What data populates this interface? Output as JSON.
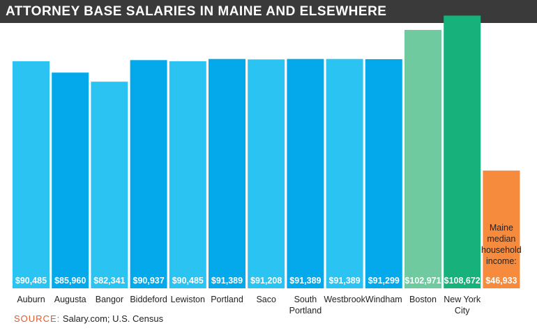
{
  "title": "ATTORNEY BASE SALARIES IN MAINE AND ELSEWHERE",
  "source": {
    "label": "SOURCE:",
    "text": "Salary.com; U.S. Census"
  },
  "colors": {
    "title_bg": "#3a3a3a",
    "bars": [
      "#2bc4f2",
      "#04a9ec",
      "#2bc4f2",
      "#04a9ec",
      "#2bc4f2",
      "#04a9ec",
      "#2bc4f2",
      "#04a9ec",
      "#2bc4f2",
      "#04a9ec",
      "#6fcb9f",
      "#17b27c",
      "#f68a3d"
    ]
  },
  "chart_data": {
    "type": "bar",
    "categories": [
      "Auburn",
      "Augusta",
      "Bangor",
      "Biddeford",
      "Lewiston",
      "Portland",
      "Saco",
      "South Portland",
      "Westbrook",
      "Windham",
      "Boston",
      "New York City",
      ""
    ],
    "values": [
      90485,
      85960,
      82341,
      90937,
      90485,
      91389,
      91208,
      91389,
      91389,
      91299,
      102971,
      108672,
      46933
    ],
    "value_labels": [
      "$90,485",
      "$85,960",
      "$82,341",
      "$90,937",
      "$90,485",
      "$91,389",
      "$91,208",
      "$91,389",
      "$91,389",
      "$91,299",
      "$102,971",
      "$108,672",
      "$46,933"
    ],
    "annotation": "Maine median household income:",
    "ylim": [
      0,
      111000
    ],
    "xlabel": "",
    "ylabel": "",
    "grid": false,
    "legend": "none"
  }
}
